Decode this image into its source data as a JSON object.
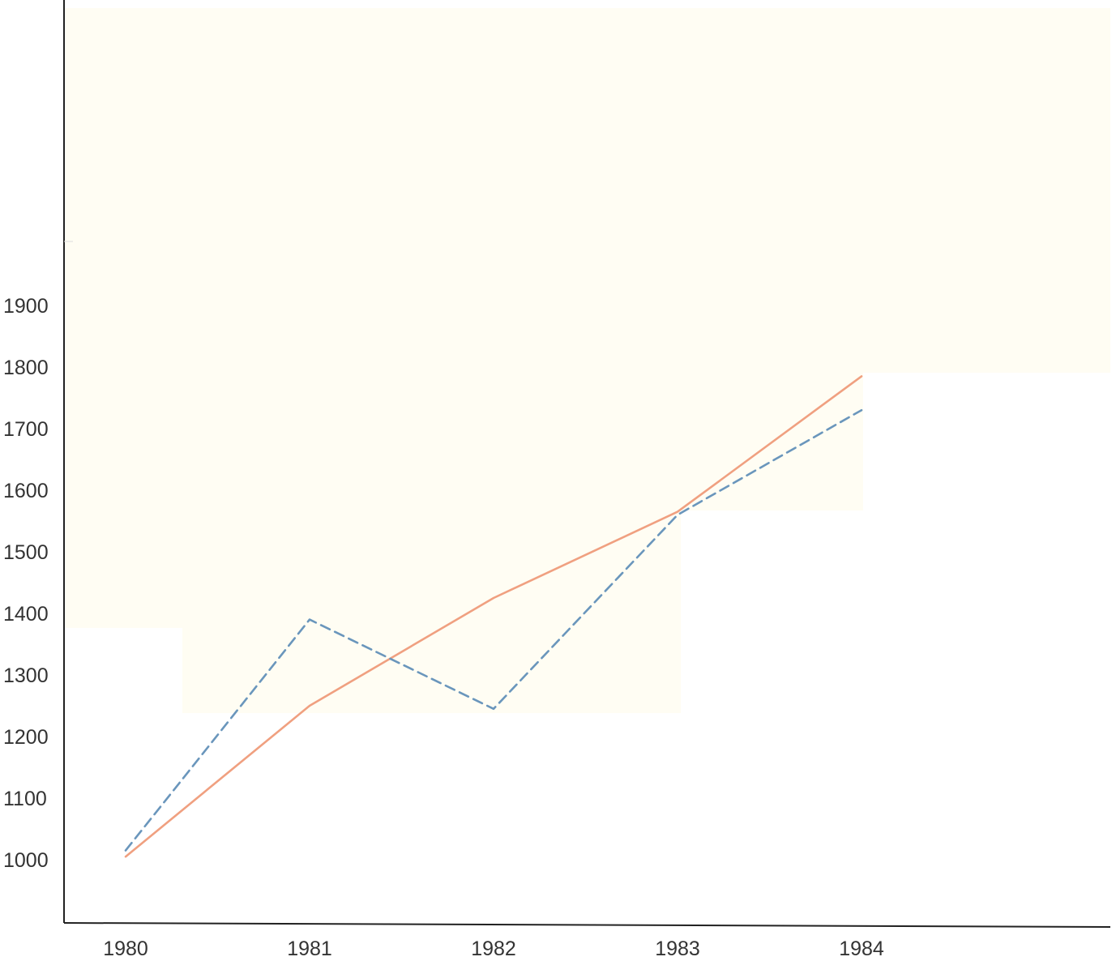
{
  "chart_data": {
    "type": "line",
    "title": "",
    "xlabel": "",
    "ylabel": "",
    "x": [
      1980,
      1981,
      1982,
      1983,
      1984
    ],
    "x_tick_labels": [
      "1980",
      "1981",
      "1982",
      "1983",
      "1984"
    ],
    "y_ticks": [
      1000,
      1100,
      1200,
      1300,
      1400,
      1500,
      1600,
      1700,
      1800,
      1900
    ],
    "y_tick_labels": [
      "1000",
      "1100",
      "1200",
      "1300",
      "1400",
      "1500",
      "1600",
      "1700",
      "1800",
      "1900"
    ],
    "ylim": [
      925,
      1960
    ],
    "grid": false,
    "legend": "none",
    "series": [
      {
        "values": [
          1005,
          1250,
          1425,
          1565,
          1785
        ],
        "color": "#f0a080",
        "line_style": "solid"
      },
      {
        "values": [
          1015,
          1390,
          1245,
          1560,
          1730
        ],
        "color": "#6a96bc",
        "line_style": "dashed"
      }
    ]
  }
}
